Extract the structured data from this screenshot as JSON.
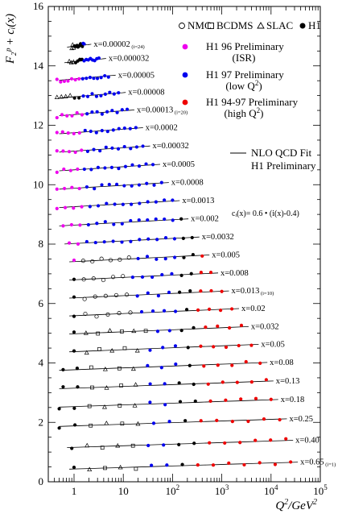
{
  "chart_data": {
    "type": "scatter",
    "title": "",
    "ylabel": "F₂ᵖ + cᵢ(x)",
    "xlabel_main": "Q",
    "xlabel_exp": "2",
    "xlabel_unit": "/GeV",
    "xlabel_unit_exp": "2",
    "xscale": "log",
    "xlim": [
      0.3,
      100000
    ],
    "ylim": [
      0,
      16
    ],
    "yticks": [
      0,
      2,
      4,
      6,
      8,
      10,
      12,
      14,
      16
    ],
    "xtick_labels": [
      {
        "value": 1,
        "label": "1"
      },
      {
        "value": 10,
        "label": "10"
      },
      {
        "value": 100,
        "label": "10",
        "exp": "2"
      },
      {
        "value": 1000,
        "label": "10",
        "exp": "3"
      },
      {
        "value": 10000,
        "label": "10",
        "exp": "4"
      },
      {
        "value": 100000,
        "label": "10",
        "exp": "5"
      }
    ],
    "top_legend": [
      {
        "symbol": "open-circle",
        "label": "NMC"
      },
      {
        "symbol": "open-square",
        "label": "BCDMS"
      },
      {
        "symbol": "open-triangle",
        "label": "SLAC"
      },
      {
        "symbol": "filled-circle",
        "label": "H1"
      }
    ],
    "legend": [
      {
        "color": "#ee00ee",
        "label1": "H1 96 Preliminary",
        "label2": "(ISR)"
      },
      {
        "color": "#0000ee",
        "label1": "H1 97 Preliminary",
        "label2": "(low Q",
        "label2_exp": "2",
        "label2_end": ")"
      },
      {
        "color": "#ee0000",
        "label1": "H1 94-97 Preliminary",
        "label2": "(high Q",
        "label2_exp": "2",
        "label2_end": ")"
      }
    ],
    "fit_legend": {
      "label1": "NLO QCD Fit",
      "label2": "H1 Preliminary"
    },
    "formula": "cᵢ(x)= 0.6 • (i(x)-0.4)",
    "series": [
      {
        "x_label": "x=0.00002",
        "note": "(i=24)",
        "F2": 0.5,
        "qmin": 0.9,
        "qmax": 1.6,
        "isr": false
      },
      {
        "x_label": "x=0.000032",
        "note": "",
        "F2": 0.58,
        "qmin": 0.8,
        "qmax": 3.2,
        "isr": false
      },
      {
        "x_label": "x=0.00005",
        "note": "",
        "F2": 0.6,
        "qmin": 0.45,
        "qmax": 5,
        "isr": true
      },
      {
        "x_label": "x=0.00008",
        "note": "",
        "F2": 0.6,
        "qmin": 0.45,
        "qmax": 8,
        "isr": false
      },
      {
        "x_label": "x=0.00013",
        "note": "(i=20)",
        "F2": 0.6,
        "qmin": 0.45,
        "qmax": 12,
        "isr": true
      },
      {
        "x_label": "x=0.0002",
        "note": "",
        "F2": 0.59,
        "qmin": 0.45,
        "qmax": 18,
        "isr": true
      },
      {
        "x_label": "x=0.00032",
        "note": "",
        "F2": 0.57,
        "qmin": 0.45,
        "qmax": 25,
        "isr": true
      },
      {
        "x_label": "x=0.0005",
        "note": "",
        "F2": 0.54,
        "qmin": 0.45,
        "qmax": 40,
        "isr": true
      },
      {
        "x_label": "x=0.0008",
        "note": "",
        "F2": 0.52,
        "qmin": 0.45,
        "qmax": 60,
        "isr": true
      },
      {
        "x_label": "x=0.0013",
        "note": "",
        "F2": 0.5,
        "qmin": 0.45,
        "qmax": 100,
        "isr": true
      },
      {
        "x_label": "x=0.002",
        "note": "",
        "F2": 0.48,
        "qmin": 0.6,
        "qmax": 150,
        "isr": true
      },
      {
        "x_label": "x=0.0032",
        "note": "",
        "F2": 0.46,
        "qmin": 0.8,
        "qmax": 250,
        "isr": true
      },
      {
        "x_label": "x=0.005",
        "note": "",
        "F2": 0.45,
        "qmin": 1,
        "qmax": 400,
        "isr": true
      },
      {
        "x_label": "x=0.008",
        "note": "",
        "F2": 0.44,
        "qmin": 1,
        "qmax": 600,
        "isr": false
      },
      {
        "x_label": "x=0.013",
        "note": "(i=10)",
        "F2": 0.43,
        "qmin": 1,
        "qmax": 1000,
        "isr": false
      },
      {
        "x_label": "x=0.02",
        "note": "",
        "F2": 0.43,
        "qmin": 1,
        "qmax": 1600,
        "isr": false
      },
      {
        "x_label": "x=0.032",
        "note": "",
        "F2": 0.42,
        "qmin": 1,
        "qmax": 2500,
        "isr": false
      },
      {
        "x_label": "x=0.05",
        "note": "",
        "F2": 0.42,
        "qmin": 1,
        "qmax": 4000,
        "isr": false
      },
      {
        "x_label": "x=0.08",
        "note": "",
        "F2": 0.41,
        "qmin": 0.6,
        "qmax": 6000,
        "isr": false
      },
      {
        "x_label": "x=0.13",
        "note": "",
        "F2": 0.39,
        "qmin": 0.6,
        "qmax": 8000,
        "isr": false
      },
      {
        "x_label": "x=0.18",
        "note": "",
        "F2": 0.37,
        "qmin": 0.5,
        "qmax": 10000,
        "isr": false
      },
      {
        "x_label": "x=0.25",
        "note": "",
        "F2": 0.32,
        "qmin": 0.5,
        "qmax": 15000,
        "isr": false
      },
      {
        "x_label": "x=0.40",
        "note": "",
        "F2": 0.2,
        "qmin": 0.9,
        "qmax": 20000,
        "isr": false
      },
      {
        "x_label": "x=0.65",
        "note": "(i=1)",
        "F2": 0.07,
        "qmin": 1,
        "qmax": 25000,
        "isr": false
      }
    ]
  }
}
